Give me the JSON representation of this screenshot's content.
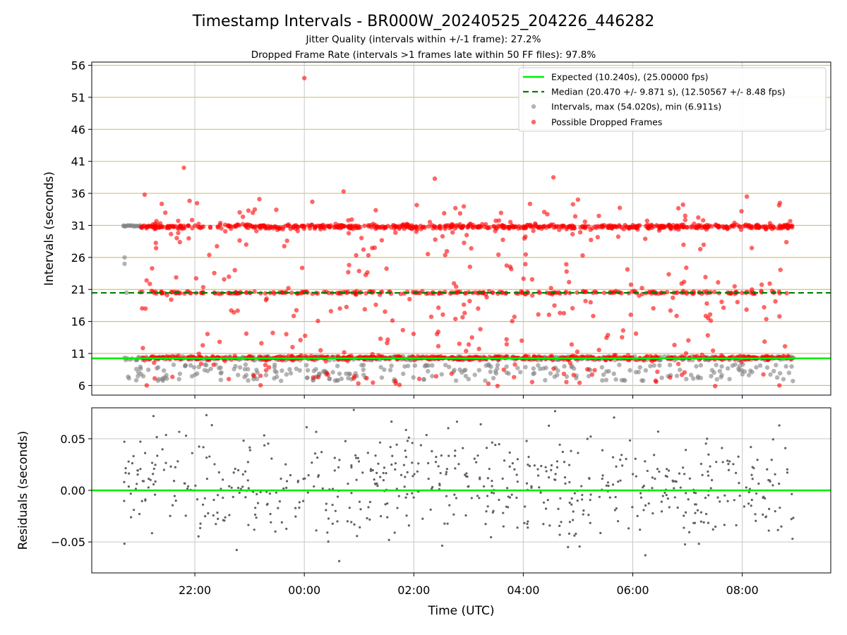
{
  "title": "Timestamp Intervals - BR000W_20240525_204226_446282",
  "subtitle1": "Jitter Quality (intervals within +/-1 frame): 27.2%",
  "subtitle2": "Dropped Frame Rate (intervals >1 frames late within 50 FF files): 97.8%",
  "colors": {
    "expected": "#00ee00",
    "median": "#008000",
    "intervals": "#808080",
    "dropped": "#ff0000",
    "gridline": "#d4c07a",
    "residuals": "#606060"
  },
  "chart_data": [
    {
      "type": "scatter",
      "ylabel": "Intervals (seconds)",
      "xaxis": {
        "type": "time",
        "start": "2024-05-25T20:42",
        "end": "2024-05-26T08:57",
        "range": [
          "2024-05-25T20:07",
          "2024-05-26T09:37"
        ],
        "ticks": [
          "22:00",
          "00:00",
          "02:00",
          "04:00",
          "06:00",
          "08:00"
        ],
        "tick_labels_shown": false
      },
      "ylim": [
        4.5,
        56.5
      ],
      "yticks": [
        6,
        11,
        16,
        21,
        26,
        31,
        36,
        41,
        46,
        51,
        56
      ],
      "grid": "horizontal gold lines at y ticks, vertical gray lines at x ticks",
      "legend_position": "top-right",
      "legend": [
        "Expected (10.240s), (25.00000 fps)",
        "Median (20.470 +/- 9.871 s), (12.50567 +/- 8.48 fps)",
        "Intervals, max (54.020s), min (6.911s)",
        "Possible Dropped Frames"
      ],
      "expected_line": 10.24,
      "median_line": 20.47,
      "series": [
        {
          "name": "Intervals, max (54.020s), min (6.911s)",
          "color": "#808080",
          "bands": [
            {
              "center": 7.3,
              "spread": 2.5
            },
            {
              "center": 10.24,
              "spread": 0.6
            }
          ],
          "extremes": [
            {
              "x": "20:42",
              "y": 30.9
            },
            {
              "x": "20:43",
              "y": 25.0
            },
            {
              "x": "20:43",
              "y": 26.0
            },
            {
              "x": "20:45",
              "y": 20.5
            }
          ],
          "max": 54.02,
          "min": 6.911
        },
        {
          "name": "Possible Dropped Frames",
          "color": "#ff0000",
          "bands": [
            {
              "center": 10.3,
              "spread": 0.4
            },
            {
              "center": 20.5,
              "spread": 0.3
            },
            {
              "center": 30.8,
              "spread": 0.5
            }
          ],
          "outliers": [
            {
              "x": "00:00",
              "y": 54.0
            },
            {
              "x": "21:48",
              "y": 40.0
            },
            {
              "x": "04:33",
              "y": 38.5
            },
            {
              "x": "02:23",
              "y": 38.3
            },
            {
              "x": "00:43",
              "y": 36.3
            },
            {
              "x": "21:05",
              "y": 35.8
            },
            {
              "x": "08:05",
              "y": 35.5
            }
          ]
        }
      ]
    },
    {
      "type": "scatter",
      "xlabel": "Time (UTC)",
      "ylabel": "Residuals (seconds)",
      "xaxis": {
        "type": "time",
        "range": [
          "2024-05-25T20:07",
          "2024-05-26T09:37"
        ],
        "ticks": [
          "22:00",
          "00:00",
          "02:00",
          "04:00",
          "06:00",
          "08:00"
        ]
      },
      "ylim": [
        -0.08,
        0.08
      ],
      "yticks": [
        0.05,
        0.0,
        -0.05
      ],
      "yticklabels": [
        "0.05",
        "0.00",
        "−0.05"
      ],
      "zero_line": 0.0,
      "series": [
        {
          "name": "Residuals",
          "color": "#606060",
          "center": 0.005,
          "spread": 0.025
        }
      ]
    }
  ]
}
